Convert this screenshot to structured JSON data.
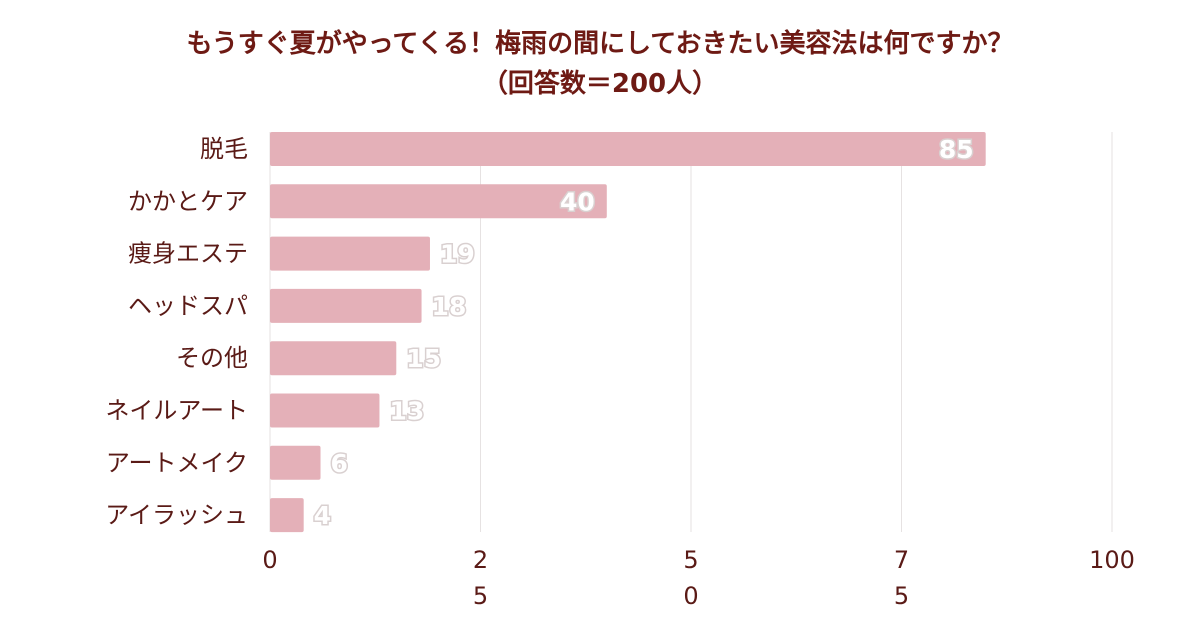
{
  "chart_data": {
    "type": "bar",
    "orientation": "horizontal",
    "title_line1": "もうすぐ夏がやってくる！梅雨の間にしておきたい美容法は何ですか？",
    "title_line2": "（回答数＝200人）",
    "categories": [
      "脱毛",
      "かかとケア",
      "痩身エステ",
      "ヘッドスパ",
      "その他",
      "ネイルアート",
      "アートメイク",
      "アイラッシュ"
    ],
    "values": [
      85,
      40,
      19,
      18,
      15,
      13,
      6,
      4
    ],
    "data_labels": [
      "85",
      "40",
      "19",
      "18",
      "15",
      "13",
      "6",
      "4"
    ],
    "xlim": [
      0,
      100
    ],
    "ticks": [
      0,
      25,
      50,
      75,
      100
    ],
    "tick_labels": [
      [
        "0"
      ],
      [
        "2",
        "5"
      ],
      [
        "5",
        "0"
      ],
      [
        "7",
        "5"
      ],
      [
        "100"
      ]
    ],
    "grid": true,
    "bar_color": "#e4b0b8",
    "text_color": "#5a1a16",
    "title_color": "#6e1a14"
  }
}
